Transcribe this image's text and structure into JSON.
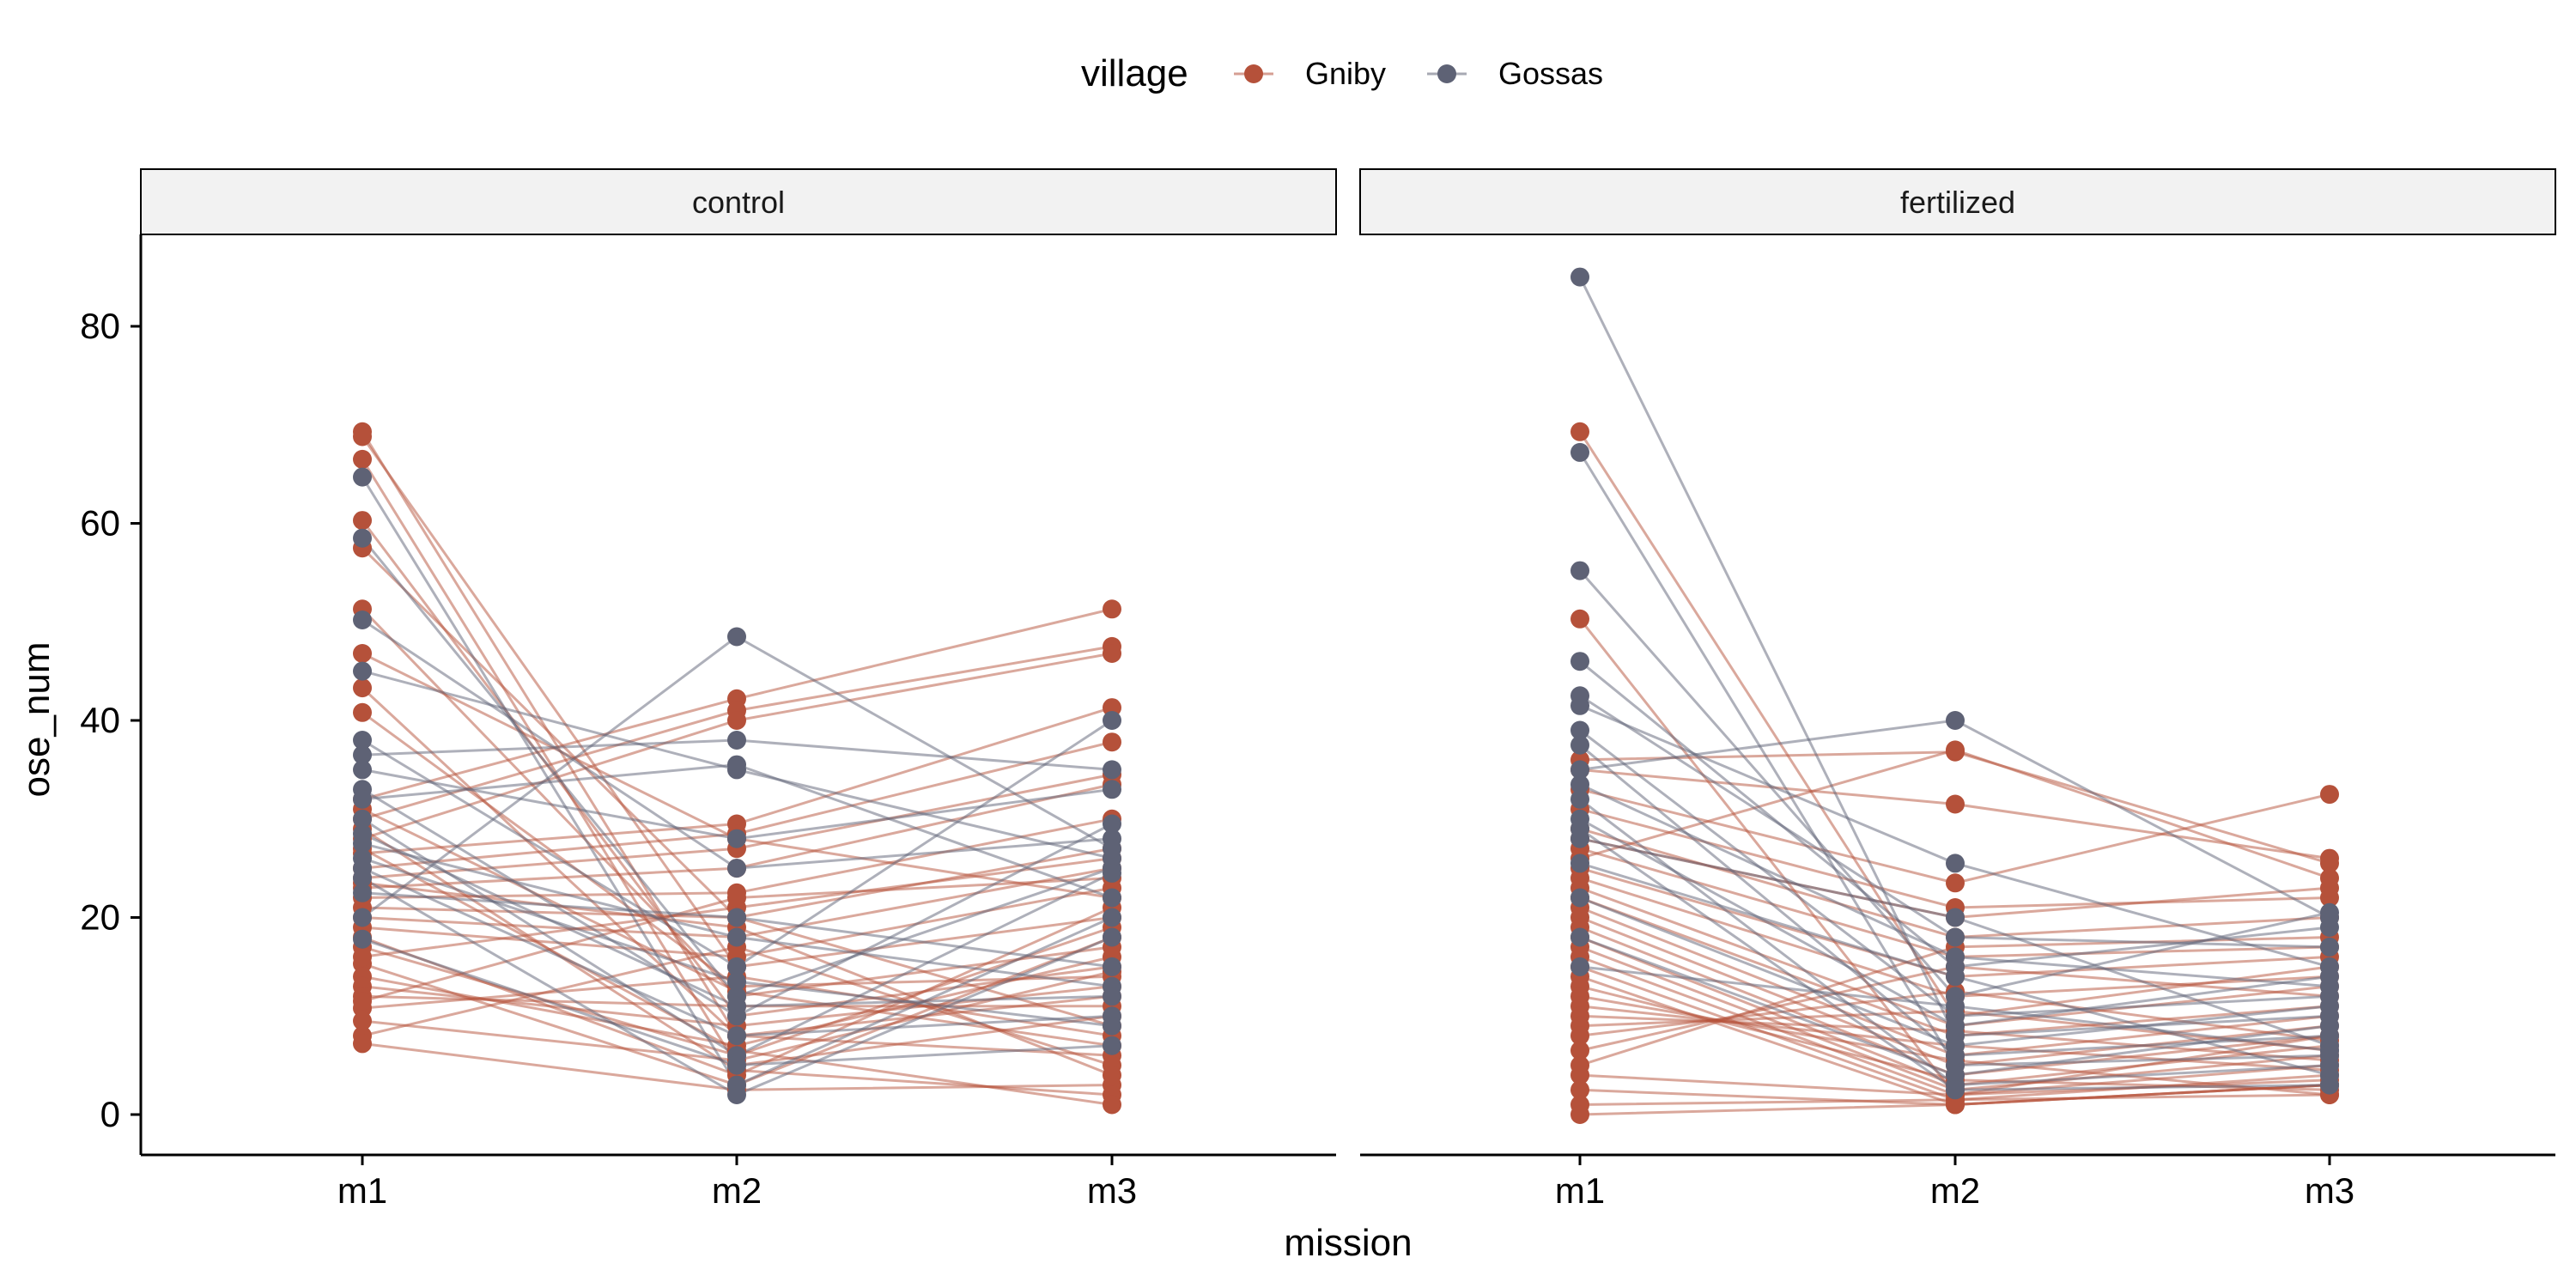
{
  "chart_data": {
    "type": "line",
    "x": [
      "m1",
      "m2",
      "m3"
    ],
    "xlabel": "mission",
    "ylabel": "ose_num",
    "ylim": [
      -4,
      89
    ],
    "yticks": [
      0,
      20,
      40,
      60,
      80
    ],
    "grid": false,
    "legend": {
      "title": "village",
      "placement": "top",
      "entries": [
        {
          "name": "Gniby",
          "color": "#b5513a"
        },
        {
          "name": "Gossas",
          "color": "#5e6275"
        }
      ]
    },
    "panels": [
      {
        "label": "control",
        "series": [
          {
            "village": "Gniby",
            "values": [
              69.3,
              8.0,
              12.0
            ]
          },
          {
            "village": "Gniby",
            "values": [
              68.8,
              15.0,
              20.0
            ]
          },
          {
            "village": "Gniby",
            "values": [
              66.5,
              5.0,
              10.0
            ]
          },
          {
            "village": "Gniby",
            "values": [
              60.3,
              10.0,
              15.0
            ]
          },
          {
            "village": "Gniby",
            "values": [
              57.5,
              20.0,
              9.0
            ]
          },
          {
            "village": "Gniby",
            "values": [
              51.3,
              12.0,
              17.0
            ]
          },
          {
            "village": "Gniby",
            "values": [
              46.8,
              28.0,
              22.0
            ]
          },
          {
            "village": "Gniby",
            "values": [
              43.3,
              8.0,
              6.0
            ]
          },
          {
            "village": "Gniby",
            "values": [
              40.8,
              13.0,
              14.0
            ]
          },
          {
            "village": "Gniby",
            "values": [
              32.0,
              42.2,
              51.3
            ]
          },
          {
            "village": "Gniby",
            "values": [
              30.0,
              41.0,
              47.5
            ]
          },
          {
            "village": "Gniby",
            "values": [
              28.0,
              40.0,
              46.8
            ]
          },
          {
            "village": "Gniby",
            "values": [
              26.5,
              29.5,
              41.3
            ]
          },
          {
            "village": "Gniby",
            "values": [
              25.0,
              28.5,
              37.8
            ]
          },
          {
            "village": "Gniby",
            "values": [
              24.0,
              27.0,
              34.5
            ]
          },
          {
            "village": "Gniby",
            "values": [
              23.0,
              25.0,
              33.5
            ]
          },
          {
            "village": "Gniby",
            "values": [
              22.0,
              22.5,
              30.0
            ]
          },
          {
            "village": "Gniby",
            "values": [
              21.0,
              20.0,
              27.0
            ]
          },
          {
            "village": "Gniby",
            "values": [
              20.0,
              18.0,
              25.0
            ]
          },
          {
            "village": "Gniby",
            "values": [
              19.0,
              16.0,
              23.0
            ]
          },
          {
            "village": "Gniby",
            "values": [
              18.0,
              4.0,
              21.0
            ]
          },
          {
            "village": "Gniby",
            "values": [
              17.0,
              6.0,
              19.0
            ]
          },
          {
            "village": "Gniby",
            "values": [
              15.3,
              3.0,
              18.0
            ]
          },
          {
            "village": "Gniby",
            "values": [
              14.0,
              7.0,
              16.0
            ]
          },
          {
            "village": "Gniby",
            "values": [
              13.0,
              9.0,
              13.0
            ]
          },
          {
            "village": "Gniby",
            "values": [
              12.0,
              11.0,
              11.0
            ]
          },
          {
            "village": "Gniby",
            "values": [
              10.8,
              14.0,
              8.0
            ]
          },
          {
            "village": "Gniby",
            "values": [
              8.0,
              17.0,
              5.0
            ]
          },
          {
            "village": "Gniby",
            "values": [
              7.2,
              2.5,
              3.0
            ]
          },
          {
            "village": "Gniby",
            "values": [
              29.0,
              4.5,
              2.0
            ]
          },
          {
            "village": "Gniby",
            "values": [
              27.0,
              6.5,
              1.0
            ]
          },
          {
            "village": "Gniby",
            "values": [
              31.0,
              12.5,
              7.0
            ]
          },
          {
            "village": "Gniby",
            "values": [
              23.5,
              19.0,
              4.0
            ]
          },
          {
            "village": "Gniby",
            "values": [
              16.0,
              21.0,
              26.0
            ]
          },
          {
            "village": "Gniby",
            "values": [
              11.5,
              22.0,
              24.0
            ]
          },
          {
            "village": "Gniby",
            "values": [
              9.5,
              5.5,
              14.5
            ]
          },
          {
            "village": "Gossas",
            "values": [
              64.7,
              3.0,
              20.0
            ]
          },
          {
            "village": "Gossas",
            "values": [
              58.5,
              12.0,
              25.0
            ]
          },
          {
            "village": "Gossas",
            "values": [
              50.2,
              25.0,
              28.0
            ]
          },
          {
            "village": "Gossas",
            "values": [
              45.0,
              35.0,
              26.0
            ]
          },
          {
            "village": "Gossas",
            "values": [
              38.0,
              15.0,
              40.0
            ]
          },
          {
            "village": "Gossas",
            "values": [
              36.5,
              38.0,
              35.0
            ]
          },
          {
            "village": "Gossas",
            "values": [
              35.0,
              28.0,
              33.0
            ]
          },
          {
            "village": "Gossas",
            "values": [
              33.0,
              10.0,
              29.5
            ]
          },
          {
            "village": "Gossas",
            "values": [
              30.0,
              6.0,
              24.5
            ]
          },
          {
            "village": "Gossas",
            "values": [
              27.5,
              18.0,
              13.0
            ]
          },
          {
            "village": "Gossas",
            "values": [
              25.0,
              8.0,
              10.0
            ]
          },
          {
            "village": "Gossas",
            "values": [
              22.5,
              20.0,
              15.0
            ]
          },
          {
            "village": "Gossas",
            "values": [
              20.0,
              48.5,
              27.0
            ]
          },
          {
            "village": "Gossas",
            "values": [
              17.8,
              5.0,
              7.0
            ]
          },
          {
            "village": "Gossas",
            "values": [
              24.0,
              2.0,
              18.0
            ]
          },
          {
            "village": "Gossas",
            "values": [
              28.5,
              11.0,
              12.0
            ]
          },
          {
            "village": "Gossas",
            "values": [
              32.0,
              35.5,
              22.0
            ]
          },
          {
            "village": "Gossas",
            "values": [
              26.0,
              13.5,
              9.0
            ]
          }
        ]
      },
      {
        "label": "fertilized",
        "series": [
          {
            "village": "Gniby",
            "values": [
              69.3,
              10.0,
              15.0
            ]
          },
          {
            "village": "Gniby",
            "values": [
              50.3,
              2.0,
              8.0
            ]
          },
          {
            "village": "Gniby",
            "values": [
              36.0,
              36.8,
              25.5
            ]
          },
          {
            "village": "Gniby",
            "values": [
              35.0,
              31.5,
              26.0
            ]
          },
          {
            "village": "Gniby",
            "values": [
              33.0,
              23.5,
              32.5
            ]
          },
          {
            "village": "Gniby",
            "values": [
              31.0,
              21.0,
              22.0
            ]
          },
          {
            "village": "Gniby",
            "values": [
              29.0,
              18.0,
              20.0
            ]
          },
          {
            "village": "Gniby",
            "values": [
              27.0,
              16.0,
              17.0
            ]
          },
          {
            "village": "Gniby",
            "values": [
              25.0,
              14.0,
              16.0
            ]
          },
          {
            "village": "Gniby",
            "values": [
              24.0,
              12.0,
              14.0
            ]
          },
          {
            "village": "Gniby",
            "values": [
              23.0,
              9.0,
              13.0
            ]
          },
          {
            "village": "Gniby",
            "values": [
              22.0,
              8.0,
              11.0
            ]
          },
          {
            "village": "Gniby",
            "values": [
              21.0,
              6.0,
              10.0
            ]
          },
          {
            "village": "Gniby",
            "values": [
              20.0,
              5.0,
              9.0
            ]
          },
          {
            "village": "Gniby",
            "values": [
              19.0,
              4.0,
              8.0
            ]
          },
          {
            "village": "Gniby",
            "values": [
              18.0,
              3.0,
              7.0
            ]
          },
          {
            "village": "Gniby",
            "values": [
              17.0,
              2.5,
              6.0
            ]
          },
          {
            "village": "Gniby",
            "values": [
              16.0,
              2.0,
              5.0
            ]
          },
          {
            "village": "Gniby",
            "values": [
              15.0,
              1.5,
              4.0
            ]
          },
          {
            "village": "Gniby",
            "values": [
              14.0,
              1.0,
              3.0
            ]
          },
          {
            "village": "Gniby",
            "values": [
              13.0,
              3.5,
              2.5
            ]
          },
          {
            "village": "Gniby",
            "values": [
              12.0,
              5.5,
              2.0
            ]
          },
          {
            "village": "Gniby",
            "values": [
              11.0,
              7.0,
              4.5
            ]
          },
          {
            "village": "Gniby",
            "values": [
              10.0,
              8.5,
              5.5
            ]
          },
          {
            "village": "Gniby",
            "values": [
              9.0,
              10.5,
              6.5
            ]
          },
          {
            "village": "Gniby",
            "values": [
              8.0,
              12.5,
              7.5
            ]
          },
          {
            "village": "Gniby",
            "values": [
              6.5,
              15.0,
              12.0
            ]
          },
          {
            "village": "Gniby",
            "values": [
              5.0,
              17.0,
              18.0
            ]
          },
          {
            "village": "Gniby",
            "values": [
              4.0,
              2.0,
              3.5
            ]
          },
          {
            "village": "Gniby",
            "values": [
              2.5,
              1.0,
              3.0
            ]
          },
          {
            "village": "Gniby",
            "values": [
              1.0,
              1.5,
              2.0
            ]
          },
          {
            "village": "Gniby",
            "values": [
              0.0,
              1.0,
              3.0
            ]
          },
          {
            "village": "Gniby",
            "values": [
              26.0,
              37.0,
              24.0
            ]
          },
          {
            "village": "Gniby",
            "values": [
              28.0,
              20.0,
              23.0
            ]
          },
          {
            "village": "Gossas",
            "values": [
              85.0,
              8.0,
              10.0
            ]
          },
          {
            "village": "Gossas",
            "values": [
              67.2,
              5.0,
              6.0
            ]
          },
          {
            "village": "Gossas",
            "values": [
              55.2,
              12.0,
              20.5
            ]
          },
          {
            "village": "Gossas",
            "values": [
              46.0,
              15.0,
              19.0
            ]
          },
          {
            "village": "Gossas",
            "values": [
              42.5,
              18.0,
              17.0
            ]
          },
          {
            "village": "Gossas",
            "values": [
              41.5,
              25.5,
              15.0
            ]
          },
          {
            "village": "Gossas",
            "values": [
              39.0,
              10.0,
              12.0
            ]
          },
          {
            "village": "Gossas",
            "values": [
              37.5,
              6.0,
              8.0
            ]
          },
          {
            "village": "Gossas",
            "values": [
              35.0,
              40.0,
              20.0
            ]
          },
          {
            "village": "Gossas",
            "values": [
              32.0,
              3.0,
              5.0
            ]
          },
          {
            "village": "Gossas",
            "values": [
              30.0,
              9.0,
              14.0
            ]
          },
          {
            "village": "Gossas",
            "values": [
              28.0,
              20.0,
              7.0
            ]
          },
          {
            "village": "Gossas",
            "values": [
              25.5,
              14.0,
              4.0
            ]
          },
          {
            "village": "Gossas",
            "values": [
              22.0,
              7.0,
              11.0
            ]
          },
          {
            "village": "Gossas",
            "values": [
              18.0,
              4.0,
              9.0
            ]
          },
          {
            "village": "Gossas",
            "values": [
              15.0,
              11.0,
              6.5
            ]
          },
          {
            "village": "Gossas",
            "values": [
              33.5,
              16.0,
              13.0
            ]
          },
          {
            "village": "Gossas",
            "values": [
              29.0,
              2.5,
              3.0
            ]
          }
        ]
      }
    ]
  }
}
